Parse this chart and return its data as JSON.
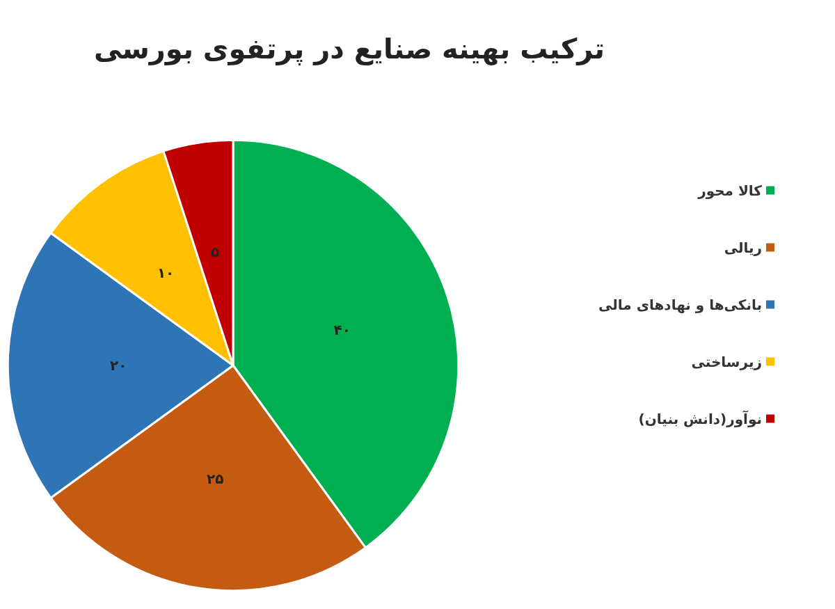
{
  "chart_data": {
    "type": "pie",
    "title": "ترکیب بهینه صنایع در پرتفوی بورسی",
    "categories": [
      "کالا محور",
      "ریالی",
      "بانکی‌ها و نهادهای مالی",
      "زیرساختی",
      "نوآور(دانش بنیان)"
    ],
    "values": [
      40,
      25,
      20,
      10,
      5
    ],
    "colors": [
      "#00b050",
      "#c55a11",
      "#2e75b6",
      "#ffc000",
      "#c00000"
    ],
    "value_labels": [
      "۴۰",
      "۲۵",
      "۲۰",
      "۱۰",
      "۵"
    ],
    "legend": "right"
  }
}
